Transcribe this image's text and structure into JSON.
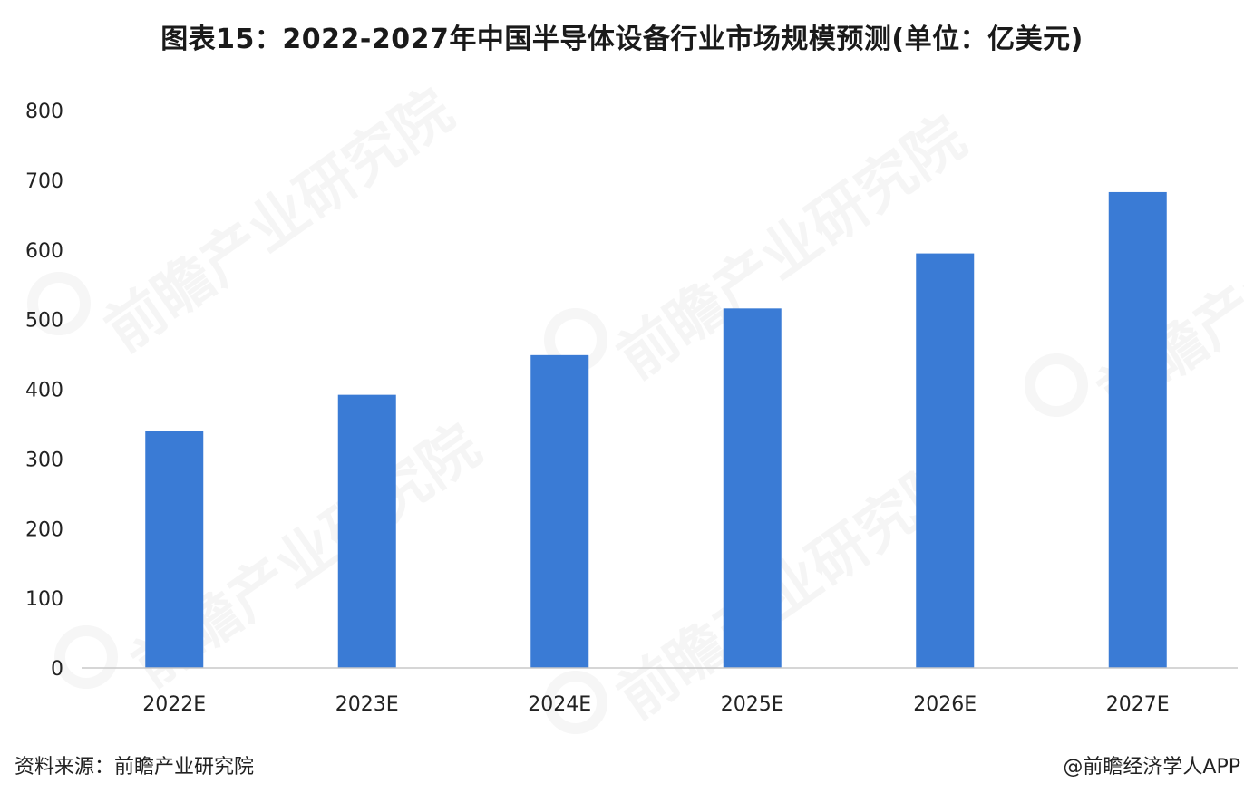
{
  "title": "图表15：2022-2027年中国半导体设备行业市场规模预测(单位：亿美元)",
  "source": "资料来源：前瞻产业研究院",
  "credit": "@前瞻经济学人APP",
  "watermark": "前瞻产业研究院",
  "colors": {
    "bar": "#3a7bd5",
    "axis": "#c8c8c8",
    "text": "#222222"
  },
  "chart_data": {
    "type": "bar",
    "title": "图表15：2022-2027年中国半导体设备行业市场规模预测(单位：亿美元)",
    "categories": [
      "2022E",
      "2023E",
      "2024E",
      "2025E",
      "2026E",
      "2027E"
    ],
    "values": [
      340,
      392,
      449,
      516,
      595,
      683
    ],
    "ylim": [
      0,
      800
    ],
    "yticks": [
      0,
      100,
      200,
      300,
      400,
      500,
      600,
      700,
      800
    ],
    "ylabel": "",
    "xlabel": "",
    "grid": false,
    "legend": "none"
  }
}
